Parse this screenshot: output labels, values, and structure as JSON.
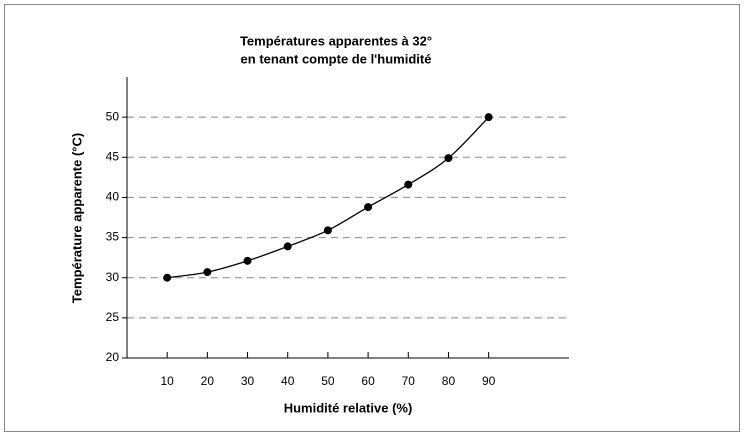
{
  "chart_data": {
    "type": "line",
    "title": [
      "Températures apparentes à 32°",
      "en tenant compte de l'humidité"
    ],
    "xlabel": "Humidité relative (%)",
    "ylabel": "Température apparente (°C)",
    "x": [
      10,
      20,
      30,
      40,
      50,
      60,
      70,
      80,
      90
    ],
    "series": [
      {
        "name": "Température apparente",
        "color": "#000000",
        "values": [
          30,
          30.7,
          32.1,
          33.9,
          35.9,
          38.8,
          41.6,
          44.9,
          50
        ]
      }
    ],
    "xlim": [
      0,
      110
    ],
    "xticks": [
      10,
      20,
      30,
      40,
      50,
      60,
      70,
      80,
      90
    ],
    "ylim": [
      20,
      55
    ],
    "yticks": [
      20,
      25,
      30,
      35,
      40,
      45,
      50
    ],
    "grid": true
  }
}
